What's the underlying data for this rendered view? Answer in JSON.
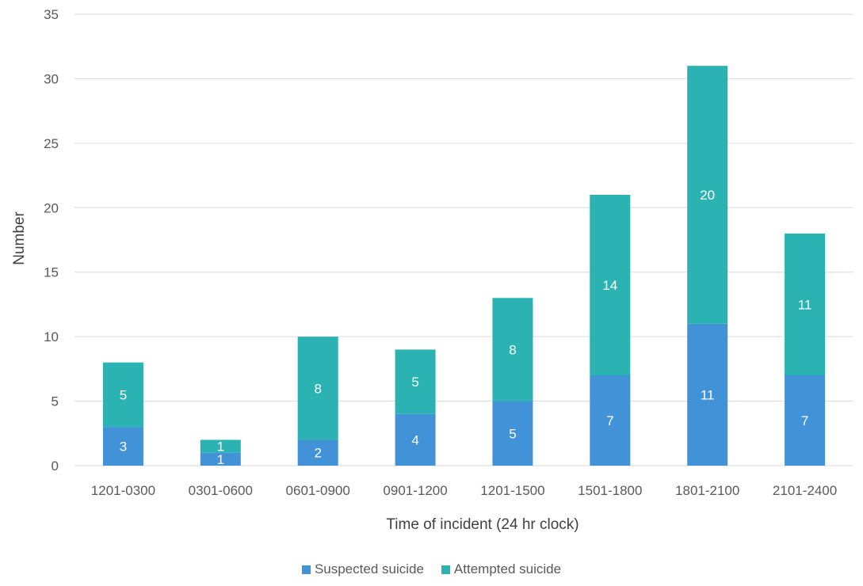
{
  "chart_data": {
    "type": "bar",
    "stacked": true,
    "categories": [
      "1201-0300",
      "0301-0600",
      "0601-0900",
      "0901-1200",
      "1201-1500",
      "1501-1800",
      "1801-2100",
      "2101-2400"
    ],
    "series": [
      {
        "name": "Suspected suicide",
        "color": "#4192d6",
        "values": [
          3,
          1,
          2,
          4,
          5,
          7,
          11,
          7
        ]
      },
      {
        "name": "Attempted suicide",
        "color": "#2ab3b2",
        "values": [
          5,
          1,
          8,
          5,
          8,
          14,
          20,
          11
        ]
      }
    ],
    "xlabel": "Time of incident (24 hr clock)",
    "ylabel": "Number",
    "ylim": [
      0,
      35
    ],
    "yticks": [
      0,
      5,
      10,
      15,
      20,
      25,
      30,
      35
    ],
    "grid": true,
    "legend_position": "bottom",
    "data_labels": true
  }
}
